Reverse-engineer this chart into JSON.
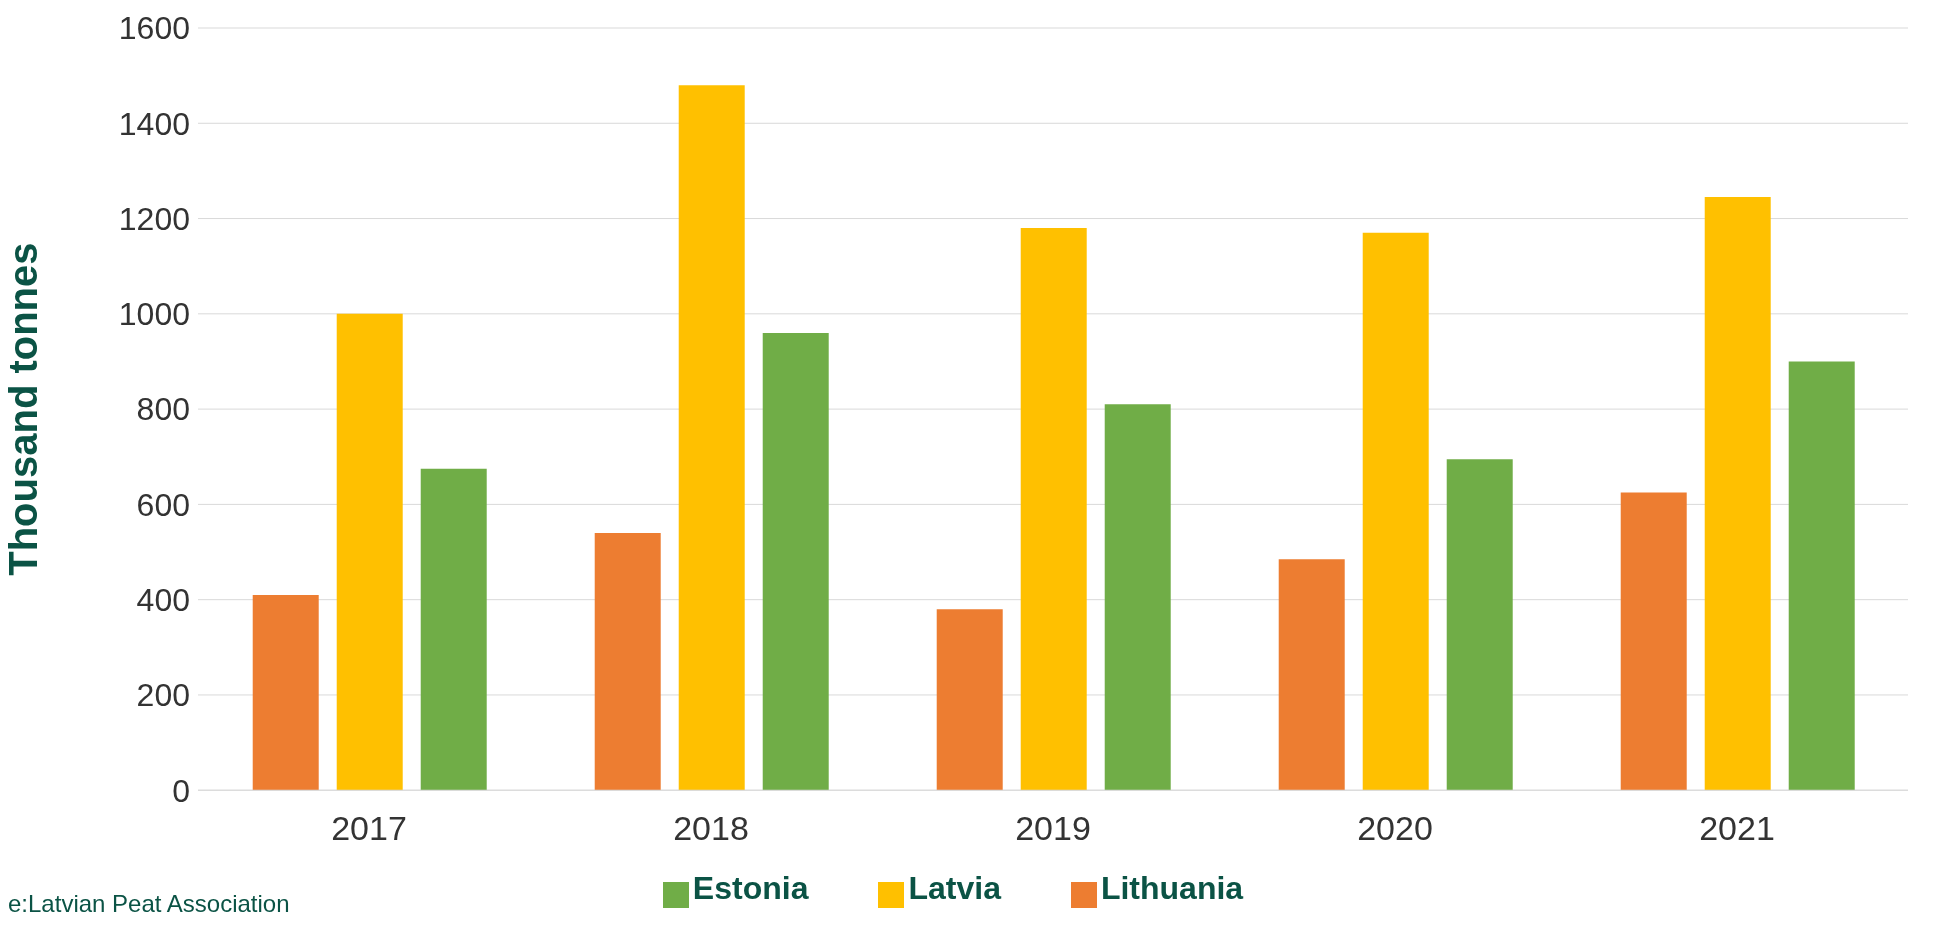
{
  "chart_data": {
    "type": "bar",
    "ylabel": "Thousand tonnes",
    "categories": [
      "2017",
      "2018",
      "2019",
      "2020",
      "2021"
    ],
    "series": [
      {
        "name": "Lithuania",
        "color": "#ed7d31",
        "values": [
          410,
          540,
          380,
          485,
          625
        ]
      },
      {
        "name": "Latvia",
        "color": "#ffc000",
        "values": [
          1000,
          1480,
          1180,
          1170,
          1245
        ]
      },
      {
        "name": "Estonia",
        "color": "#70ad47",
        "values": [
          675,
          960,
          810,
          695,
          900
        ]
      }
    ],
    "ylim": [
      0,
      1600
    ],
    "yticks": [
      0,
      200,
      400,
      600,
      800,
      1000,
      1200,
      1400,
      1600
    ],
    "grid": "y",
    "legend": "bottom",
    "annotations": [
      "e:Latvian Peat Association"
    ]
  }
}
